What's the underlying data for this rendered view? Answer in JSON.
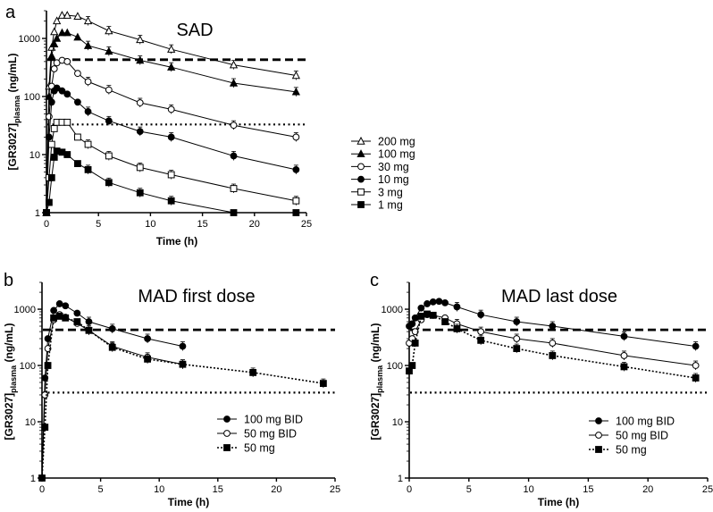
{
  "chart_data": [
    {
      "panel": "a",
      "type": "line",
      "title": "SAD",
      "xlabel": "Time (h)",
      "ylabel": "[GR3027]",
      "ylabel_sub": "plasma",
      "ylabel_unit": "(ng/mL)",
      "yscale": "log",
      "xlim": [
        0,
        25
      ],
      "ylim": [
        1,
        3000
      ],
      "xticks": [
        "0",
        "5",
        "10",
        "15",
        "20",
        "25"
      ],
      "yticks": [
        "1",
        "10",
        "100",
        "1000"
      ],
      "ref_lines": [
        {
          "style": "dashed",
          "y": 430
        },
        {
          "style": "dotted",
          "y": 33
        }
      ],
      "legend_position": "right",
      "series": [
        {
          "name": "200 mg",
          "marker": "triangle-open",
          "x": [
            0,
            0.25,
            0.5,
            0.75,
            1,
            1.5,
            2,
            3,
            4,
            6,
            9,
            12,
            18,
            24
          ],
          "y": [
            1,
            150,
            700,
            1300,
            2000,
            2500,
            2500,
            2400,
            2000,
            1350,
            950,
            650,
            350,
            230
          ]
        },
        {
          "name": "100 mg",
          "marker": "triangle-filled",
          "x": [
            0,
            0.25,
            0.5,
            0.75,
            1,
            1.5,
            2,
            3,
            4,
            6,
            9,
            12,
            18,
            24
          ],
          "y": [
            1,
            100,
            500,
            800,
            1000,
            1250,
            1250,
            1050,
            750,
            600,
            420,
            320,
            170,
            120
          ]
        },
        {
          "name": "30 mg",
          "marker": "circle-open",
          "x": [
            0,
            0.25,
            0.5,
            0.75,
            1,
            1.5,
            2,
            3,
            4,
            6,
            9,
            12,
            18,
            24
          ],
          "y": [
            1,
            45,
            150,
            300,
            380,
            420,
            400,
            250,
            180,
            130,
            78,
            60,
            32,
            20
          ]
        },
        {
          "name": "10 mg",
          "marker": "circle-filled",
          "x": [
            0,
            0.25,
            0.5,
            0.75,
            1,
            1.5,
            2,
            3,
            4,
            6,
            9,
            12,
            18,
            24
          ],
          "y": [
            1,
            20,
            80,
            125,
            140,
            125,
            110,
            80,
            55,
            38,
            25,
            20,
            9.5,
            5.5
          ]
        },
        {
          "name": "3 mg",
          "marker": "square-open",
          "x": [
            0,
            0.25,
            0.5,
            0.75,
            1,
            1.5,
            2,
            3,
            4,
            6,
            9,
            12,
            18,
            24
          ],
          "y": [
            1,
            4,
            15,
            28,
            36,
            36,
            36,
            20,
            15,
            9.5,
            6,
            4.5,
            2.6,
            1.6
          ]
        },
        {
          "name": "1 mg",
          "marker": "square-filled",
          "x": [
            0,
            0.25,
            0.5,
            0.75,
            1,
            1.5,
            2,
            3,
            4,
            6,
            9,
            12,
            18,
            24
          ],
          "y": [
            1,
            1.5,
            4,
            9,
            11.5,
            11,
            10,
            7,
            5.5,
            3.3,
            2.2,
            1.6,
            1.0,
            1.0
          ]
        }
      ]
    },
    {
      "panel": "b",
      "type": "line",
      "title": "MAD first dose",
      "xlabel": "Time (h)",
      "ylabel": "[GR3027]",
      "ylabel_sub": "plasma",
      "ylabel_unit": "(ng/mL)",
      "yscale": "log",
      "xlim": [
        0,
        25
      ],
      "ylim": [
        1,
        3000
      ],
      "xticks": [
        "0",
        "5",
        "10",
        "15",
        "20",
        "25"
      ],
      "yticks": [
        "1",
        "10",
        "100",
        "1000"
      ],
      "ref_lines": [
        {
          "style": "dashed",
          "y": 430
        },
        {
          "style": "dotted",
          "y": 33
        }
      ],
      "legend_position": "bottom-right",
      "series": [
        {
          "name": "100 mg BID",
          "marker": "circle-filled",
          "line": "solid",
          "x": [
            0,
            0.25,
            0.5,
            1,
            1.5,
            2,
            3,
            4,
            6,
            9,
            12
          ],
          "y": [
            1,
            60,
            300,
            950,
            1250,
            1150,
            850,
            600,
            450,
            300,
            220
          ]
        },
        {
          "name": "50 mg BID",
          "marker": "circle-open",
          "line": "solid",
          "x": [
            0,
            0.25,
            0.5,
            1,
            1.5,
            2,
            3,
            4,
            6,
            9,
            12
          ],
          "y": [
            1,
            30,
            200,
            650,
            800,
            720,
            560,
            420,
            220,
            140,
            105
          ]
        },
        {
          "name": "50 mg",
          "marker": "square-filled",
          "line": "dotted",
          "x": [
            0,
            0.25,
            0.5,
            1,
            1.5,
            2,
            3,
            4,
            6,
            9,
            12,
            18,
            24
          ],
          "y": [
            1,
            8,
            100,
            700,
            750,
            700,
            600,
            420,
            210,
            130,
            105,
            75,
            48
          ]
        }
      ]
    },
    {
      "panel": "c",
      "type": "line",
      "title": "MAD last dose",
      "xlabel": "Time (h)",
      "ylabel": "[GR3027]",
      "ylabel_sub": "plasma",
      "ylabel_unit": "(ng/mL)",
      "yscale": "log",
      "xlim": [
        0,
        25
      ],
      "ylim": [
        1,
        3000
      ],
      "xticks": [
        "0",
        "5",
        "10",
        "15",
        "20",
        "25"
      ],
      "yticks": [
        "1",
        "10",
        "100",
        "1000"
      ],
      "ref_lines": [
        {
          "style": "dashed",
          "y": 430
        },
        {
          "style": "dotted",
          "y": 33
        }
      ],
      "legend_position": "bottom-right",
      "series": [
        {
          "name": "100 mg BID",
          "marker": "circle-filled",
          "line": "solid",
          "x": [
            0,
            0.25,
            0.5,
            1,
            1.5,
            2,
            2.5,
            3,
            4,
            6,
            9,
            12,
            18,
            24
          ],
          "y": [
            500,
            550,
            700,
            1050,
            1250,
            1350,
            1380,
            1300,
            1100,
            800,
            600,
            500,
            330,
            220
          ]
        },
        {
          "name": "50 mg BID",
          "marker": "circle-open",
          "line": "solid",
          "x": [
            0,
            0.25,
            0.5,
            1,
            1.5,
            2,
            3,
            4,
            6,
            9,
            12,
            18,
            24
          ],
          "y": [
            250,
            300,
            400,
            650,
            800,
            780,
            700,
            550,
            400,
            300,
            250,
            150,
            100
          ]
        },
        {
          "name": "50 mg",
          "marker": "square-filled",
          "line": "dotted",
          "x": [
            0,
            0.25,
            0.5,
            1,
            1.5,
            2,
            3,
            4,
            6,
            9,
            12,
            18,
            24
          ],
          "y": [
            80,
            100,
            250,
            750,
            820,
            780,
            600,
            450,
            280,
            200,
            150,
            95,
            60
          ]
        }
      ]
    }
  ],
  "panel_labels": [
    "a",
    "b",
    "c"
  ]
}
